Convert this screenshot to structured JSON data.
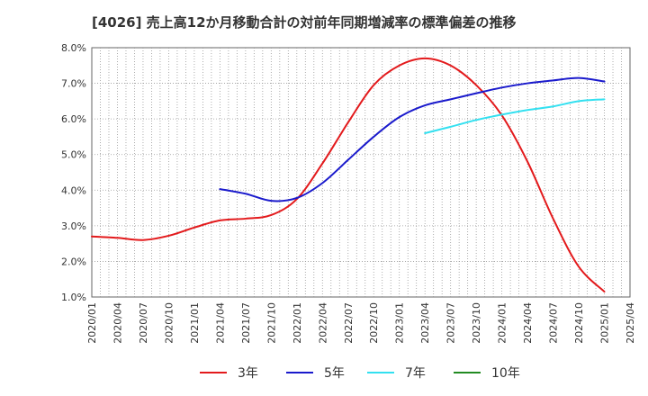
{
  "chart_data": {
    "type": "line",
    "title": "[4026]  売上高12か月移動合計の対前年同期増減率の標準偏差の推移",
    "xlabel": "",
    "ylabel": "",
    "x_ticks": [
      "2020/01",
      "2020/04",
      "2020/07",
      "2020/10",
      "2021/01",
      "2021/04",
      "2021/07",
      "2021/10",
      "2022/01",
      "2022/04",
      "2022/07",
      "2022/10",
      "2023/01",
      "2023/04",
      "2023/07",
      "2023/10",
      "2024/01",
      "2024/04",
      "2024/07",
      "2024/10",
      "2025/01",
      "2025/04"
    ],
    "y_ticks": [
      "1.0%",
      "2.0%",
      "3.0%",
      "4.0%",
      "5.0%",
      "6.0%",
      "7.0%",
      "8.0%"
    ],
    "ylim": [
      1.0,
      8.0
    ],
    "grid": true,
    "legend_position": "bottom",
    "series": [
      {
        "name": "3年",
        "color": "#e31a1c",
        "points": [
          [
            "2020/01",
            2.7
          ],
          [
            "2020/04",
            2.66
          ],
          [
            "2020/07",
            2.6
          ],
          [
            "2020/10",
            2.72
          ],
          [
            "2021/01",
            2.95
          ],
          [
            "2021/04",
            3.15
          ],
          [
            "2021/07",
            3.2
          ],
          [
            "2021/10",
            3.3
          ],
          [
            "2022/01",
            3.75
          ],
          [
            "2022/04",
            4.75
          ],
          [
            "2022/07",
            5.9
          ],
          [
            "2022/10",
            6.95
          ],
          [
            "2023/01",
            7.5
          ],
          [
            "2023/04",
            7.7
          ],
          [
            "2023/07",
            7.5
          ],
          [
            "2023/10",
            6.95
          ],
          [
            "2024/01",
            6.1
          ],
          [
            "2024/04",
            4.8
          ],
          [
            "2024/07",
            3.2
          ],
          [
            "2024/10",
            1.85
          ],
          [
            "2025/01",
            1.15
          ]
        ]
      },
      {
        "name": "5年",
        "color": "#1a1acc",
        "points": [
          [
            "2021/04",
            4.03
          ],
          [
            "2021/07",
            3.9
          ],
          [
            "2021/10",
            3.7
          ],
          [
            "2022/01",
            3.78
          ],
          [
            "2022/04",
            4.2
          ],
          [
            "2022/07",
            4.85
          ],
          [
            "2022/10",
            5.5
          ],
          [
            "2023/01",
            6.05
          ],
          [
            "2023/04",
            6.38
          ],
          [
            "2023/07",
            6.55
          ],
          [
            "2023/10",
            6.72
          ],
          [
            "2024/01",
            6.88
          ],
          [
            "2024/04",
            7.0
          ],
          [
            "2024/07",
            7.08
          ],
          [
            "2024/10",
            7.15
          ],
          [
            "2025/01",
            7.05
          ]
        ]
      },
      {
        "name": "7年",
        "color": "#33e0f0",
        "points": [
          [
            "2023/04",
            5.6
          ],
          [
            "2023/07",
            5.78
          ],
          [
            "2023/10",
            5.97
          ],
          [
            "2024/01",
            6.12
          ],
          [
            "2024/04",
            6.25
          ],
          [
            "2024/07",
            6.35
          ],
          [
            "2024/10",
            6.5
          ],
          [
            "2025/01",
            6.55
          ]
        ]
      },
      {
        "name": "10年",
        "color": "#228b22",
        "points": []
      }
    ]
  }
}
